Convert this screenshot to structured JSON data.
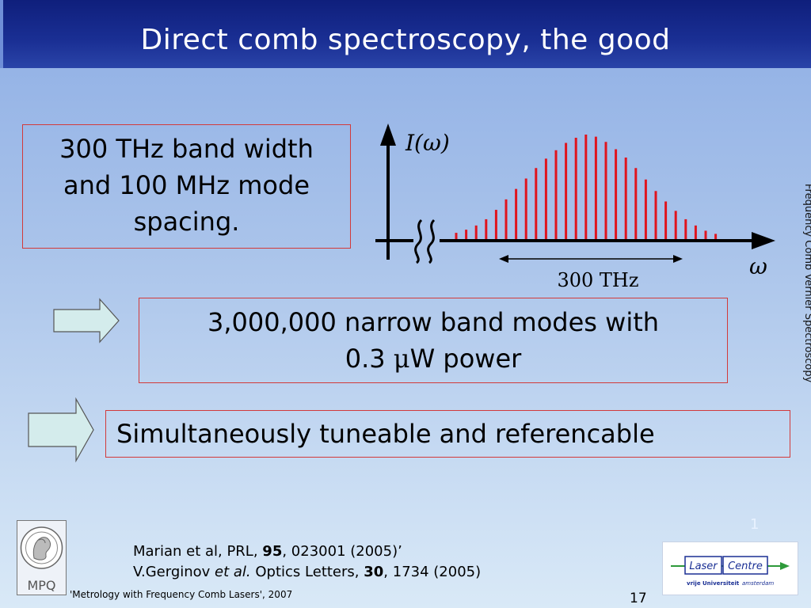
{
  "slide": {
    "title": "Direct comb spectroscopy, the good",
    "page_number": "17",
    "ghost_number": "1",
    "footer": "'Metrology with Frequency Comb Lasers', 2007",
    "side_label": "Frequency Comb Vernier Spectroscopy"
  },
  "box1": {
    "line1": "300 THz band width",
    "line2": "and 100 MHz mode",
    "line3": "spacing."
  },
  "box2": {
    "line1": "3,000,000 narrow band modes with",
    "line2_prefix": "0.3 ",
    "mu": "μ",
    "line2_suffix": "W power"
  },
  "box3": {
    "text": "Simultaneously tuneable and referencable"
  },
  "references": {
    "ref1_prefix": "Marian et al, PRL, ",
    "ref1_vol": "95",
    "ref1_suffix": ", 023001 (2005)’",
    "ref2_author": "V.Gerginov ",
    "ref2_etal": "et al.",
    "ref2_journal": " Optics Letters, ",
    "ref2_vol": "30",
    "ref2_suffix": ", 1734 (2005)"
  },
  "comb_plot": {
    "y_label": "I(ω)",
    "x_label": "ω",
    "span_label": "300 THz",
    "line_color": "#e0141e",
    "relative_heights": [
      0.06,
      0.09,
      0.13,
      0.19,
      0.28,
      0.38,
      0.48,
      0.58,
      0.68,
      0.77,
      0.85,
      0.92,
      0.97,
      1.0,
      0.98,
      0.93,
      0.86,
      0.78,
      0.68,
      0.57,
      0.46,
      0.36,
      0.27,
      0.19,
      0.13,
      0.08,
      0.05
    ]
  },
  "logos": {
    "mpq_text": "MPQ",
    "laser_word": "Laser",
    "centre_word": "Centre",
    "vu_text": "vrije Universiteit",
    "amsterdam_text": "amsterdam"
  },
  "colors": {
    "title_bar": "#16278a",
    "box_border": "#d23a3a",
    "arrow_fill": "#d4ecec"
  }
}
